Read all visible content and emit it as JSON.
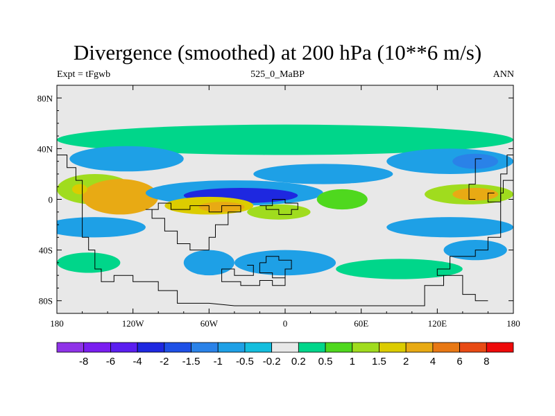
{
  "chart_data": {
    "type": "heatmap",
    "title": "Divergence (smoothed) at 200 hPa (10**6 m/s)",
    "subtitle_left": "Expt = tFgwb",
    "subtitle_center": "525_0_MaBP",
    "subtitle_right": "ANN",
    "x_ticks": [
      {
        "value": -180,
        "label": "180"
      },
      {
        "value": -120,
        "label": "120W"
      },
      {
        "value": -60,
        "label": "60W"
      },
      {
        "value": 0,
        "label": "0"
      },
      {
        "value": 60,
        "label": "60E"
      },
      {
        "value": 120,
        "label": "120E"
      },
      {
        "value": 180,
        "label": "180"
      }
    ],
    "y_ticks": [
      {
        "value": 80,
        "label": "80N"
      },
      {
        "value": 40,
        "label": "40N"
      },
      {
        "value": 0,
        "label": "0"
      },
      {
        "value": -40,
        "label": "40S"
      },
      {
        "value": -80,
        "label": "80S"
      }
    ],
    "xlim": [
      -180,
      180
    ],
    "ylim": [
      -90,
      90
    ],
    "colorbar": {
      "colors": [
        "#8f33e8",
        "#7a1ef0",
        "#5b1ef0",
        "#1e28e0",
        "#1e50e6",
        "#2a82e8",
        "#1ea0e6",
        "#14bede",
        "#e8e8e8",
        "#00d68a",
        "#4fd81e",
        "#a0dc1e",
        "#dccc00",
        "#e8aa14",
        "#e87814",
        "#e84a14",
        "#ee0a0a"
      ],
      "labels": [
        "-8",
        "-6",
        "-4",
        "-2",
        "-1.5",
        "-1",
        "-0.5",
        "-0.2",
        "0.2",
        "0.5",
        "1",
        "1.5",
        "2",
        "4",
        "6",
        "8"
      ]
    },
    "field_blobs": [
      {
        "lon": 0,
        "lat": 47,
        "rlon": 180,
        "rlat": 12,
        "level": 9
      },
      {
        "lon": -125,
        "lat": 32,
        "rlon": 45,
        "rlat": 10,
        "level": 6
      },
      {
        "lon": 130,
        "lat": 30,
        "rlon": 50,
        "rlat": 10,
        "level": 6
      },
      {
        "lon": 150,
        "lat": 30,
        "rlon": 18,
        "rlat": 6,
        "level": 5
      },
      {
        "lon": 30,
        "lat": 20,
        "rlon": 55,
        "rlat": 8,
        "level": 6
      },
      {
        "lon": -150,
        "lat": 8,
        "rlon": 30,
        "rlat": 12,
        "level": 11
      },
      {
        "lon": -130,
        "lat": 2,
        "rlon": 30,
        "rlat": 14,
        "level": 13
      },
      {
        "lon": -162,
        "lat": 8,
        "rlon": 6,
        "rlat": 4,
        "level": 12
      },
      {
        "lon": 145,
        "lat": 4,
        "rlon": 35,
        "rlat": 8,
        "level": 11
      },
      {
        "lon": 150,
        "lat": 4,
        "rlon": 18,
        "rlat": 5,
        "level": 13
      },
      {
        "lon": -40,
        "lat": 5,
        "rlon": 70,
        "rlat": 10,
        "level": 6
      },
      {
        "lon": -35,
        "lat": 3,
        "rlon": 45,
        "rlat": 6,
        "level": 3
      },
      {
        "lon": -60,
        "lat": -5,
        "rlon": 35,
        "rlat": 7,
        "level": 12
      },
      {
        "lon": -50,
        "lat": -6,
        "rlon": 18,
        "rlat": 4,
        "level": 13
      },
      {
        "lon": -5,
        "lat": -10,
        "rlon": 25,
        "rlat": 6,
        "level": 11
      },
      {
        "lon": 45,
        "lat": 0,
        "rlon": 20,
        "rlat": 8,
        "level": 10
      },
      {
        "lon": -150,
        "lat": -22,
        "rlon": 40,
        "rlat": 8,
        "level": 6
      },
      {
        "lon": 130,
        "lat": -22,
        "rlon": 50,
        "rlat": 8,
        "level": 6
      },
      {
        "lon": -155,
        "lat": -50,
        "rlon": 25,
        "rlat": 8,
        "level": 9
      },
      {
        "lon": -60,
        "lat": -50,
        "rlon": 20,
        "rlat": 10,
        "level": 6
      },
      {
        "lon": 0,
        "lat": -50,
        "rlon": 40,
        "rlat": 10,
        "level": 6
      },
      {
        "lon": 90,
        "lat": -55,
        "rlon": 50,
        "rlat": 8,
        "level": 9
      },
      {
        "lon": 150,
        "lat": -40,
        "rlon": 25,
        "rlat": 8,
        "level": 6
      }
    ]
  }
}
